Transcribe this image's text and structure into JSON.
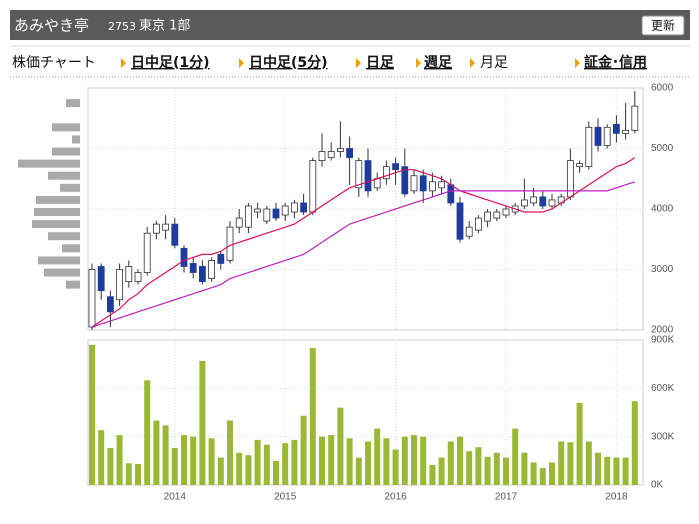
{
  "header": {
    "name": "あみやき亭",
    "code": "2753",
    "market": "東京 1部",
    "button": "更新"
  },
  "tabs": [
    "株価チャート",
    "日中足(1分)",
    "日中足(5分)",
    "日足",
    "週足",
    "月足",
    "証金･信用"
  ],
  "chart_data": [
    {
      "type": "candlestick",
      "ylim": [
        2000,
        6000
      ],
      "yticks": [
        6000,
        5000,
        4000,
        3000,
        2000
      ],
      "grid": true,
      "up_color": "#ffffff",
      "down_color": "#1f3c9c",
      "open": [
        2050,
        3050,
        2550,
        2500,
        2800,
        2800,
        2950,
        3600,
        3650,
        3750,
        3350,
        3100,
        3050,
        2850,
        3250,
        3150,
        3700,
        3700,
        3950,
        3800,
        4000,
        3900,
        3950,
        4100,
        3950,
        4800,
        4850,
        4950,
        5000,
        4350,
        4800,
        4350,
        4500,
        4750,
        4700,
        4300,
        4550,
        4300,
        4350,
        4400,
        4100,
        3550,
        3650,
        3800,
        3850,
        3900,
        3950,
        4050,
        4100,
        4200,
        4050,
        4100,
        4200,
        4700,
        4700,
        5350,
        5050,
        5400,
        5250,
        5300
      ],
      "high": [
        3100,
        3100,
        2650,
        3100,
        3150,
        3000,
        3700,
        3800,
        3900,
        3850,
        3400,
        3200,
        3150,
        3200,
        3300,
        3800,
        4000,
        4100,
        4100,
        4050,
        4100,
        4100,
        4150,
        4250,
        4850,
        5250,
        5100,
        5450,
        5200,
        4850,
        5000,
        4600,
        4800,
        4850,
        5000,
        4650,
        4650,
        4600,
        4550,
        4500,
        4200,
        3800,
        3900,
        4000,
        4000,
        4050,
        4100,
        4500,
        4350,
        4300,
        4250,
        4250,
        5000,
        4800,
        5450,
        5500,
        5400,
        5550,
        5750,
        5950
      ],
      "low": [
        2000,
        2500,
        2050,
        2400,
        2700,
        2750,
        2900,
        3500,
        3500,
        3350,
        2950,
        2850,
        2750,
        2800,
        3000,
        3100,
        3600,
        3600,
        3850,
        3750,
        3800,
        3800,
        3850,
        3900,
        3900,
        4700,
        4800,
        4850,
        4400,
        4200,
        4200,
        4300,
        4400,
        4400,
        4200,
        4250,
        4100,
        4200,
        4250,
        4050,
        3450,
        3500,
        3600,
        3700,
        3800,
        3850,
        3900,
        4000,
        4050,
        4000,
        4000,
        4050,
        4150,
        4600,
        4650,
        4950,
        5000,
        5100,
        5150,
        5250
      ],
      "close": [
        3000,
        2650,
        2300,
        3000,
        3050,
        2950,
        3600,
        3750,
        3750,
        3400,
        3050,
        2950,
        2800,
        3150,
        3100,
        3700,
        3850,
        4050,
        4000,
        4000,
        3850,
        4050,
        4100,
        3950,
        4800,
        4950,
        4950,
        5000,
        4850,
        4800,
        4300,
        4500,
        4700,
        4650,
        4250,
        4550,
        4300,
        4450,
        4450,
        4100,
        3500,
        3700,
        3850,
        3950,
        3950,
        4000,
        4050,
        4150,
        4200,
        4050,
        4150,
        4200,
        4800,
        4750,
        5350,
        5050,
        5350,
        5250,
        5300,
        5700
      ],
      "series": [
        {
          "color": "#d4145a",
          "values": [
            2050,
            2150,
            2250,
            2350,
            2500,
            2600,
            2750,
            2850,
            2950,
            3050,
            3150,
            3200,
            3250,
            3250,
            3300,
            3400,
            3450,
            3500,
            3550,
            3600,
            3650,
            3700,
            3750,
            3850,
            3950,
            4050,
            4150,
            4250,
            4350,
            4400,
            4450,
            4500,
            4550,
            4600,
            4650,
            4650,
            4600,
            4550,
            4500,
            4400,
            4300,
            4250,
            4200,
            4150,
            4100,
            4050,
            4000,
            3950,
            3950,
            3950,
            4000,
            4100,
            4200,
            4300,
            4400,
            4500,
            4600,
            4700,
            4750,
            4850
          ]
        },
        {
          "color": "#c020c0",
          "values": [
            2050,
            2100,
            2150,
            2200,
            2250,
            2300,
            2350,
            2400,
            2450,
            2500,
            2550,
            2600,
            2650,
            2700,
            2750,
            2850,
            2900,
            2950,
            3000,
            3050,
            3100,
            3150,
            3200,
            3250,
            3350,
            3450,
            3550,
            3650,
            3750,
            3800,
            3850,
            3900,
            3950,
            4000,
            4050,
            4100,
            4150,
            4200,
            4250,
            4300,
            4300,
            4300,
            4300,
            4300,
            4300,
            4300,
            4300,
            4300,
            4300,
            4300,
            4300,
            4300,
            4300,
            4300,
            4300,
            4300,
            4300,
            4350,
            4400,
            4450
          ]
        }
      ],
      "volume_profile": {
        "color": "#aaaaaa",
        "prices": [
          5750,
          5350,
          5150,
          4950,
          4750,
          4550,
          4350,
          4150,
          3950,
          3750,
          3550,
          3350,
          3150,
          2950,
          2750
        ],
        "values": [
          14,
          28,
          8,
          28,
          62,
          32,
          20,
          44,
          46,
          48,
          32,
          18,
          42,
          36,
          14
        ]
      }
    },
    {
      "type": "bar",
      "color": "#9ab836",
      "ylim": [
        0,
        900000
      ],
      "yticks": [
        {
          "value": 900000,
          "label": "900K"
        },
        {
          "value": 600000,
          "label": "600K"
        },
        {
          "value": 300000,
          "label": "300K"
        },
        {
          "value": 0,
          "label": "0K"
        }
      ],
      "grid": true,
      "categories": [
        null,
        null,
        null,
        null,
        null,
        null,
        null,
        null,
        null,
        "2014",
        null,
        null,
        null,
        null,
        null,
        null,
        null,
        null,
        null,
        null,
        null,
        "2015",
        null,
        null,
        null,
        null,
        null,
        null,
        null,
        null,
        null,
        null,
        null,
        "2016",
        null,
        null,
        null,
        null,
        null,
        null,
        null,
        null,
        null,
        null,
        null,
        "2017",
        null,
        null,
        null,
        null,
        null,
        null,
        null,
        null,
        null,
        null,
        null,
        "2018",
        null,
        null
      ],
      "values": [
        870000,
        340000,
        230000,
        310000,
        135000,
        130000,
        650000,
        400000,
        370000,
        230000,
        310000,
        300000,
        770000,
        290000,
        170000,
        400000,
        200000,
        185000,
        280000,
        250000,
        150000,
        260000,
        280000,
        430000,
        850000,
        300000,
        310000,
        480000,
        290000,
        170000,
        270000,
        350000,
        290000,
        220000,
        300000,
        310000,
        300000,
        125000,
        170000,
        270000,
        300000,
        210000,
        235000,
        175000,
        200000,
        170000,
        350000,
        200000,
        140000,
        105000,
        140000,
        270000,
        265000,
        510000,
        270000,
        200000,
        175000,
        170000,
        170000,
        520000
      ]
    }
  ]
}
